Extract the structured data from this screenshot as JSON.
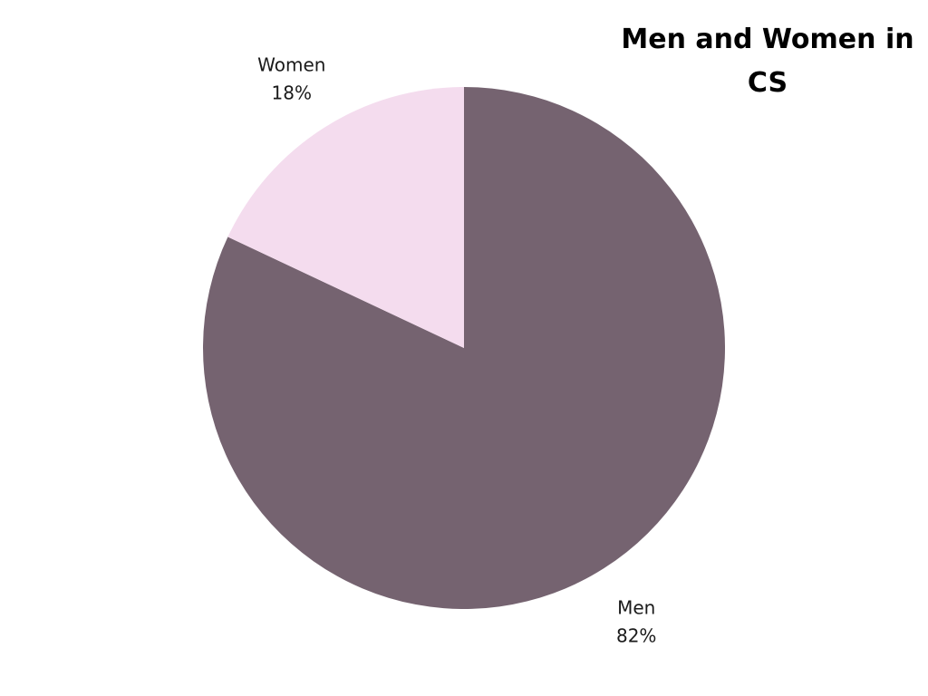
{
  "chart_data": {
    "type": "pie",
    "title": "Men and Women in CS",
    "slices": [
      {
        "label": "Men",
        "value": 82,
        "display": "82%",
        "color": "#756370"
      },
      {
        "label": "Women",
        "value": 18,
        "display": "18%",
        "color": "#f4dcee"
      }
    ],
    "start": "12 o'clock",
    "direction": "clockwise"
  }
}
